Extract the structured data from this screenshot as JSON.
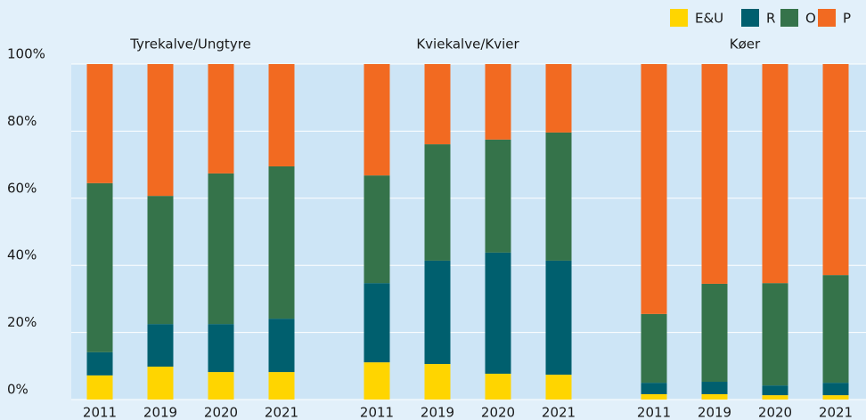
{
  "chart_data": {
    "type": "stacked_bar",
    "groups": [
      "Tyrekalve/Ungtyre",
      "Kviekalve/Kvier",
      "Køer"
    ],
    "categories": [
      "2011",
      "2019",
      "2020",
      "2021",
      "2011",
      "2019",
      "2020",
      "2021",
      "2011",
      "2019",
      "2020",
      "2021"
    ],
    "series": [
      {
        "name": "E&U",
        "color": "#ffd500",
        "values": [
          7.2,
          9.8,
          8.2,
          8.2,
          11.1,
          10.6,
          7.7,
          7.4,
          1.6,
          1.6,
          1.3,
          1.3
        ]
      },
      {
        "name": "R",
        "color": "#005f6e",
        "values": [
          6.9,
          12.7,
          14.3,
          15.9,
          23.6,
          30.8,
          36.1,
          34.0,
          3.4,
          3.7,
          2.9,
          3.7
        ]
      },
      {
        "name": "O",
        "color": "#35734a",
        "values": [
          50.4,
          38.2,
          44.9,
          45.4,
          32.1,
          34.7,
          33.7,
          38.2,
          20.5,
          29.2,
          30.5,
          32.1
        ]
      },
      {
        "name": "P",
        "color": "#f26a21",
        "values": [
          35.5,
          39.3,
          32.6,
          30.5,
          33.2,
          23.9,
          22.5,
          20.4,
          74.5,
          65.5,
          65.3,
          62.9
        ]
      }
    ],
    "ylim": [
      0,
      100
    ],
    "yticks": [
      {
        "value": 0,
        "label": "0%"
      },
      {
        "value": 20,
        "label": "20%"
      },
      {
        "value": 40,
        "label": "40%"
      },
      {
        "value": 60,
        "label": "60%"
      },
      {
        "value": 80,
        "label": "80%"
      },
      {
        "value": 100,
        "label": "100%"
      }
    ],
    "grid": true,
    "legend": "top-right"
  }
}
